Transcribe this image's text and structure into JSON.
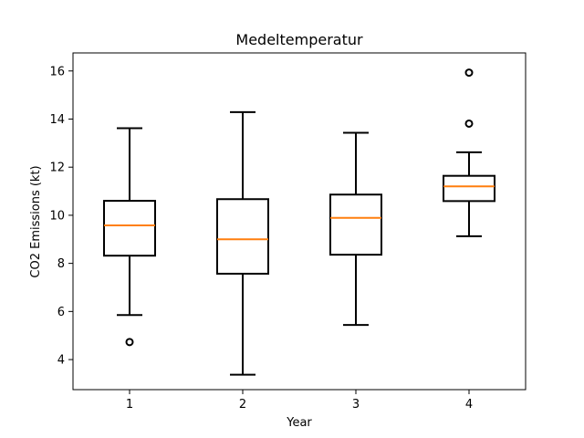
{
  "chart_data": {
    "type": "box",
    "title": "Medeltemperatur",
    "xlabel": "Year",
    "ylabel": "CO2 Emissions (kt)",
    "categories": [
      "1",
      "2",
      "3",
      "4"
    ],
    "ylim": [
      2.75,
      16.75
    ],
    "yticks": [
      4,
      6,
      8,
      10,
      12,
      14,
      16
    ],
    "grid": false,
    "series": [
      {
        "category": "1",
        "whisker_low": 5.85,
        "q1": 8.32,
        "median": 9.58,
        "q3": 10.6,
        "whisker_high": 13.62,
        "outliers": [
          4.73
        ]
      },
      {
        "category": "2",
        "whisker_low": 3.37,
        "q1": 7.57,
        "median": 9.0,
        "q3": 10.67,
        "whisker_high": 14.29,
        "outliers": []
      },
      {
        "category": "3",
        "whisker_low": 5.44,
        "q1": 8.36,
        "median": 9.89,
        "q3": 10.86,
        "whisker_high": 13.43,
        "outliers": []
      },
      {
        "category": "4",
        "whisker_low": 9.13,
        "q1": 10.59,
        "median": 11.2,
        "q3": 11.64,
        "whisker_high": 12.62,
        "outliers": [
          13.81,
          15.93
        ]
      }
    ],
    "colors": {
      "box": "#000000",
      "median": "#ff7f0e",
      "outlier_edge": "#000000"
    }
  }
}
